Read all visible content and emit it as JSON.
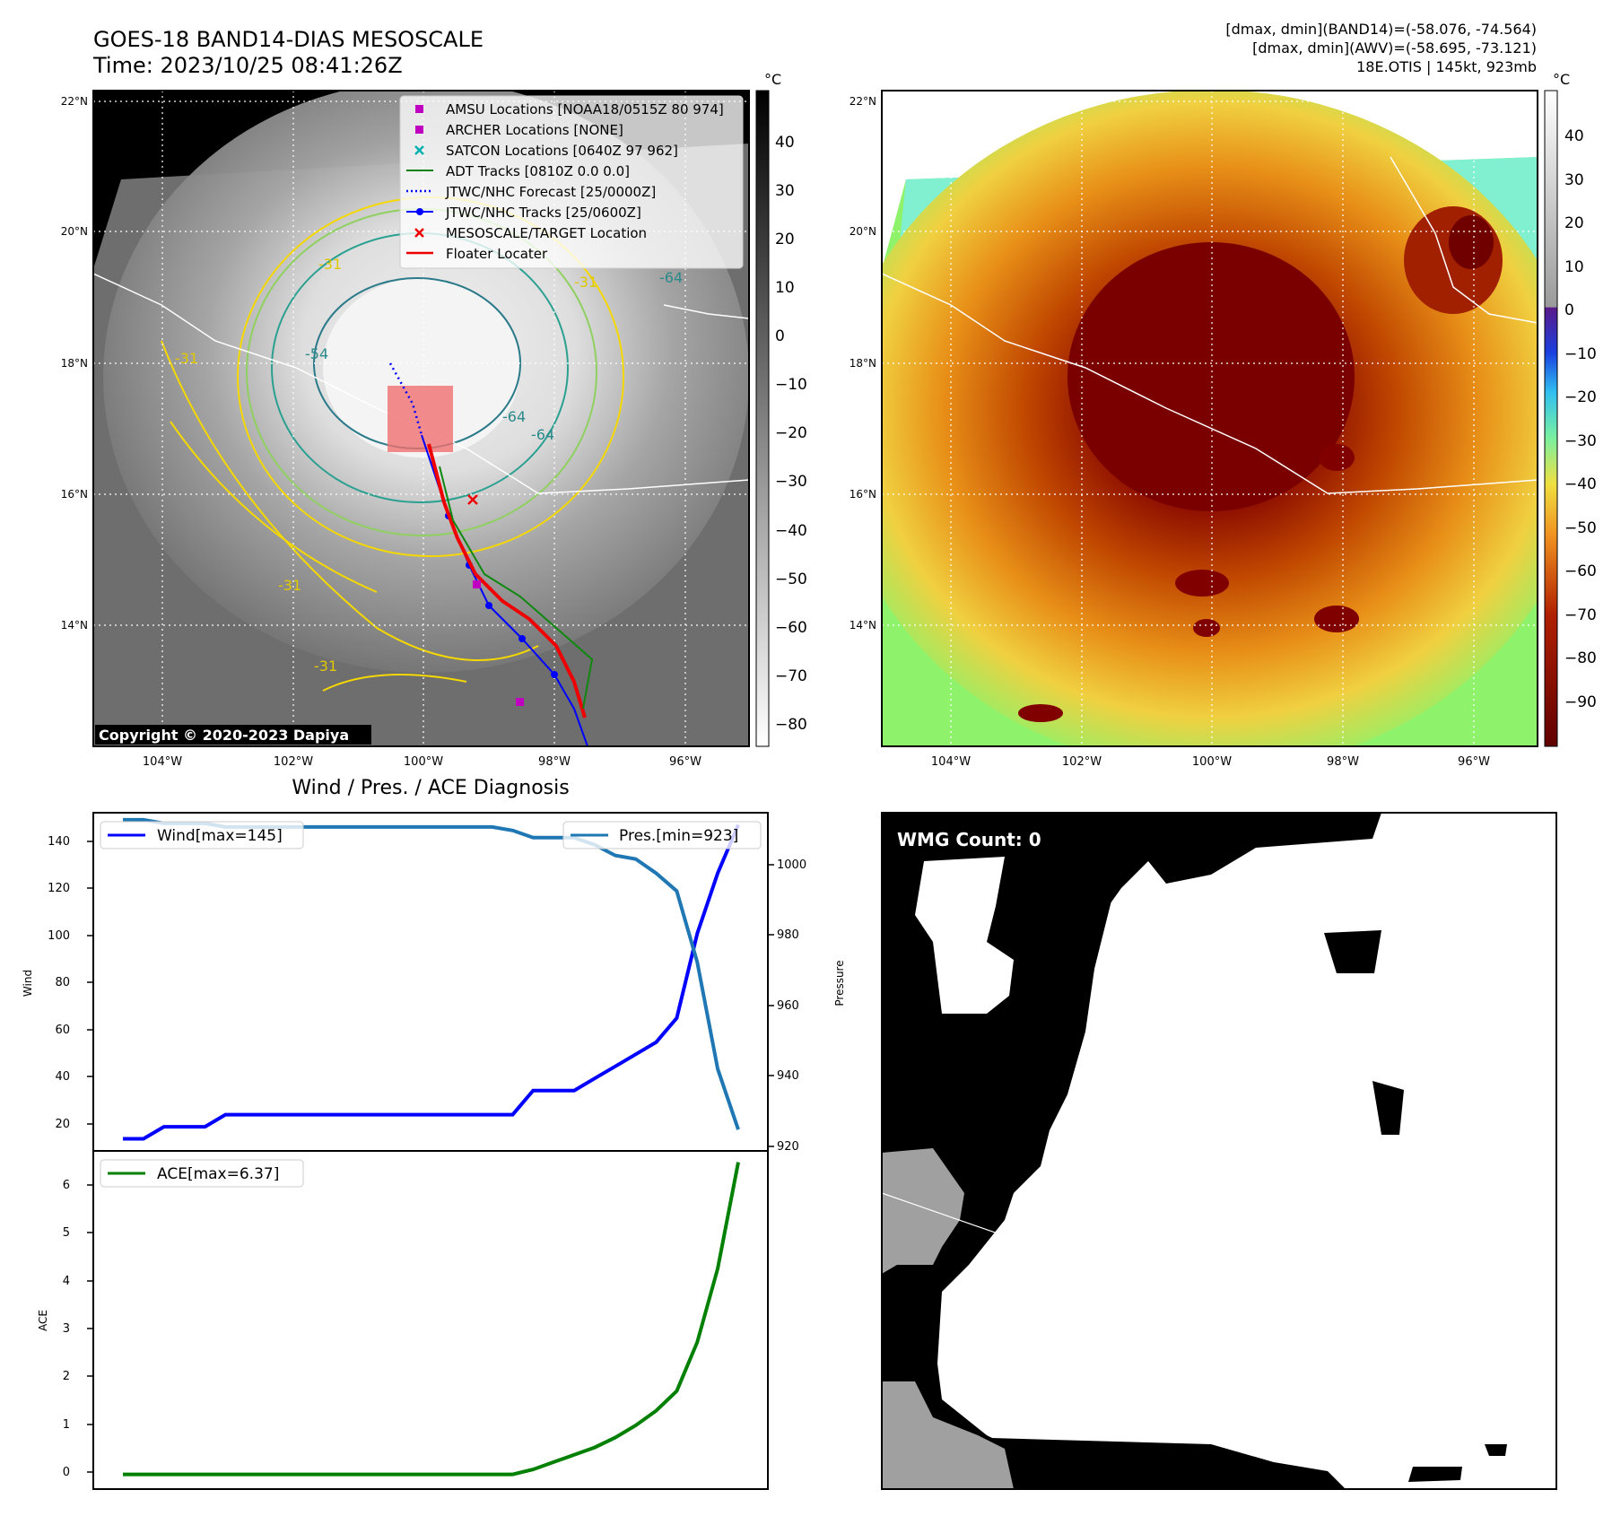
{
  "header": {
    "title_line1": "GOES-18 BAND14-DIAS MESOSCALE",
    "title_line2": "Time: 2023/10/25 08:41:26Z",
    "info_line1": "[dmax, dmin](BAND14)=(-58.076, -74.564)",
    "info_line2": "[dmax, dmin](AWV)=(-58.695, -73.121)",
    "info_line3": "18E.OTIS | 145kt, 923mb"
  },
  "map_axes": {
    "lat_labels": [
      "22°N",
      "20°N",
      "18°N",
      "16°N",
      "14°N"
    ],
    "lon_labels": [
      "104°W",
      "102°W",
      "100°W",
      "98°W",
      "96°W"
    ]
  },
  "ir_panel": {
    "colorbar_unit": "°C",
    "colorbar_ticks": [
      "40",
      "30",
      "20",
      "10",
      "0",
      "−10",
      "−20",
      "−30",
      "−40",
      "−50",
      "−60",
      "−70",
      "−80"
    ],
    "copyright": "Copyright © 2020-2023 Dapiya",
    "legend": [
      {
        "label": "AMSU Locations [NOAA18/0515Z 80 974]",
        "color": "#c000c0",
        "marker": "square"
      },
      {
        "label": "ARCHER Locations [NONE]",
        "color": "#c000c0",
        "marker": "square"
      },
      {
        "label": "SATCON Locations [0640Z 97 962]",
        "color": "#00b0b0",
        "marker": "x"
      },
      {
        "label": "ADT Tracks [0810Z 0.0 0.0]",
        "color": "#008000",
        "marker": "line"
      },
      {
        "label": "JTWC/NHC Forecast [25/0000Z]",
        "color": "#0000ff",
        "marker": "dotted"
      },
      {
        "label": "JTWC/NHC Tracks [25/0600Z]",
        "color": "#0000ff",
        "marker": "line-dot"
      },
      {
        "label": "MESOSCALE/TARGET Location",
        "color": "#ff0000",
        "marker": "x"
      },
      {
        "label": "Floater Locater",
        "color": "#ff0000",
        "marker": "line"
      }
    ],
    "contour_labels": [
      "-31",
      "-31",
      "-31",
      "-31",
      "-54",
      "-64",
      "-64",
      "-64",
      "-31"
    ]
  },
  "awv_panel": {
    "colorbar_unit": "°C",
    "colorbar_ticks": [
      "40",
      "30",
      "20",
      "10",
      "0",
      "−10",
      "−20",
      "−30",
      "−40",
      "−50",
      "−60",
      "−70",
      "−80",
      "−90"
    ]
  },
  "diagnosis": {
    "title": "Wind / Pres. / ACE Diagnosis",
    "wind_label": "Wind",
    "pres_label": "Pressure",
    "ace_label": "ACE",
    "wind_legend": "Wind[max=145]",
    "pres_legend": "Pres.[min=923]",
    "ace_legend": "ACE[max=6.37]",
    "wind_ticks": [
      "140",
      "120",
      "100",
      "80",
      "60",
      "40",
      "20"
    ],
    "pres_ticks": [
      "1000",
      "980",
      "960",
      "940",
      "920"
    ],
    "ace_ticks": [
      "6",
      "5",
      "4",
      "3",
      "2",
      "1",
      "0"
    ],
    "colors": {
      "wind": "#0000ff",
      "pres": "#1f77b4",
      "ace": "#008000"
    }
  },
  "wmg_panel": {
    "label": "WMG Count: 0"
  },
  "chart_data": [
    {
      "type": "line",
      "title": "Wind / Pres. / ACE Diagnosis",
      "ylabel": "Wind",
      "ylim": [
        10,
        150
      ],
      "series": [
        {
          "name": "Wind[max=145]",
          "values": [
            15,
            15,
            20,
            20,
            20,
            25,
            25,
            25,
            25,
            25,
            25,
            25,
            25,
            25,
            25,
            25,
            25,
            25,
            25,
            25,
            35,
            35,
            35,
            40,
            45,
            50,
            55,
            65,
            100,
            125,
            145
          ]
        }
      ]
    },
    {
      "type": "line",
      "ylabel": "Pressure",
      "ylim": [
        917,
        1012
      ],
      "series": [
        {
          "name": "Pres.[min=923]",
          "values": [
            1010,
            1010,
            1009,
            1009,
            1009,
            1008,
            1008,
            1008,
            1008,
            1008,
            1008,
            1008,
            1008,
            1008,
            1008,
            1008,
            1008,
            1008,
            1008,
            1007,
            1005,
            1005,
            1005,
            1003,
            1000,
            999,
            995,
            990,
            970,
            940,
            923
          ]
        }
      ]
    },
    {
      "type": "line",
      "ylabel": "ACE",
      "ylim": [
        -0.3,
        6.6
      ],
      "series": [
        {
          "name": "ACE[max=6.37]",
          "values": [
            0,
            0,
            0,
            0,
            0,
            0,
            0,
            0,
            0,
            0,
            0,
            0,
            0,
            0,
            0,
            0,
            0,
            0,
            0,
            0,
            0.1,
            0.25,
            0.4,
            0.55,
            0.75,
            1.0,
            1.3,
            1.7,
            2.7,
            4.2,
            6.37
          ]
        }
      ]
    }
  ]
}
